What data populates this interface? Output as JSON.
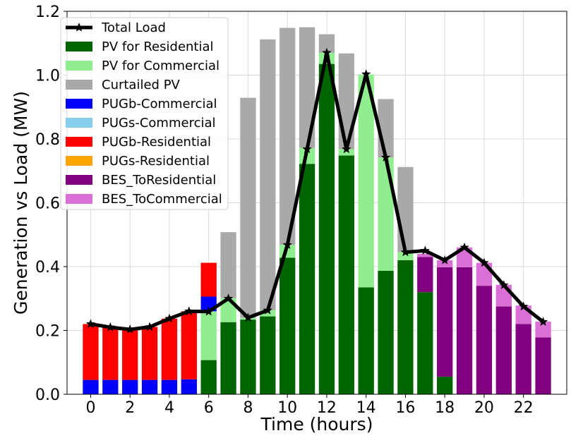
{
  "chart_data": {
    "type": "bar",
    "stacked": true,
    "x": [
      0,
      1,
      2,
      3,
      4,
      5,
      6,
      7,
      8,
      9,
      10,
      11,
      12,
      13,
      14,
      15,
      16,
      17,
      18,
      19,
      20,
      21,
      22,
      23
    ],
    "xticks": [
      0,
      2,
      4,
      6,
      8,
      10,
      12,
      14,
      16,
      18,
      20,
      22
    ],
    "yticks": [
      0.0,
      0.2,
      0.4,
      0.6,
      0.8,
      1.0,
      1.2
    ],
    "xlim": [
      -1.2,
      24.2
    ],
    "ylim": [
      0,
      1.2
    ],
    "xlabel": "Time (hours)",
    "ylabel": "Generation vs Load (MW)",
    "grid": true,
    "legend_position": "top-left",
    "series": [
      {
        "name": "PV for Residential",
        "color": "#006400",
        "values": [
          0,
          0,
          0,
          0,
          0,
          0,
          0.107,
          0.226,
          0.234,
          0.244,
          0.428,
          0.722,
          1.035,
          0.748,
          0.335,
          0.387,
          0.42,
          0.32,
          0.055,
          0,
          0,
          0,
          0,
          0
        ]
      },
      {
        "name": "PV for Commercial",
        "color": "#90EE90",
        "values": [
          0,
          0,
          0,
          0,
          0,
          0,
          0.153,
          0.075,
          0.005,
          0.02,
          0.04,
          0.05,
          0.035,
          0.02,
          0.667,
          0.355,
          0.025,
          0,
          0,
          0,
          0,
          0,
          0,
          0
        ]
      },
      {
        "name": "Curtailed PV",
        "color": "#A9A9A9",
        "values": [
          0,
          0,
          0,
          0,
          0,
          0,
          0,
          0.207,
          0.69,
          0.848,
          0.68,
          0.378,
          0.058,
          0.3,
          0,
          0.183,
          0.267,
          0,
          0,
          0,
          0,
          0,
          0,
          0
        ]
      },
      {
        "name": "PUGb-Commercial",
        "color": "#0000FF",
        "values": [
          0.045,
          0.045,
          0.045,
          0.045,
          0.045,
          0.047,
          0.046,
          0,
          0,
          0,
          0,
          0,
          0,
          0,
          0,
          0,
          0,
          0,
          0,
          0,
          0,
          0,
          0,
          0
        ]
      },
      {
        "name": "PUGs-Commercial",
        "color": "#87CEEB",
        "values": [
          0,
          0,
          0,
          0,
          0,
          0,
          0,
          0,
          0,
          0,
          0,
          0,
          0,
          0,
          0,
          0,
          0,
          0,
          0,
          0,
          0,
          0,
          0,
          0
        ]
      },
      {
        "name": "PUGb-Residential",
        "color": "#FF0000",
        "values": [
          0.175,
          0.165,
          0.158,
          0.166,
          0.192,
          0.213,
          0.106,
          0,
          0,
          0,
          0,
          0,
          0,
          0,
          0,
          0,
          0,
          0,
          0,
          0,
          0,
          0,
          0,
          0
        ]
      },
      {
        "name": "PUGs-Residential",
        "color": "#FFA500",
        "values": [
          0,
          0,
          0,
          0,
          0,
          0,
          0,
          0,
          0,
          0,
          0,
          0,
          0,
          0,
          0,
          0,
          0,
          0,
          0,
          0,
          0,
          0,
          0,
          0
        ]
      },
      {
        "name": "BES_ToResidential",
        "color": "#800080",
        "values": [
          0,
          0,
          0,
          0,
          0,
          0,
          0,
          0,
          0,
          0,
          0,
          0,
          0,
          0,
          0,
          0,
          0,
          0.11,
          0.343,
          0.398,
          0.34,
          0.275,
          0.22,
          0.178
        ]
      },
      {
        "name": "BES_ToCommercial",
        "color": "#DA70D6",
        "values": [
          0,
          0,
          0,
          0,
          0,
          0,
          0,
          0,
          0,
          0,
          0,
          0,
          0,
          0,
          0,
          0,
          0,
          0.01,
          0.022,
          0.062,
          0.072,
          0.068,
          0.058,
          0.05
        ]
      }
    ],
    "line": {
      "name": "Total Load",
      "color": "#000000",
      "marker": "star",
      "values": [
        0.22,
        0.21,
        0.203,
        0.211,
        0.237,
        0.26,
        0.259,
        0.3,
        0.24,
        0.263,
        0.468,
        0.768,
        1.07,
        0.768,
        1.003,
        0.742,
        0.445,
        0.45,
        0.42,
        0.46,
        0.412,
        0.342,
        0.275,
        0.227
      ]
    }
  }
}
